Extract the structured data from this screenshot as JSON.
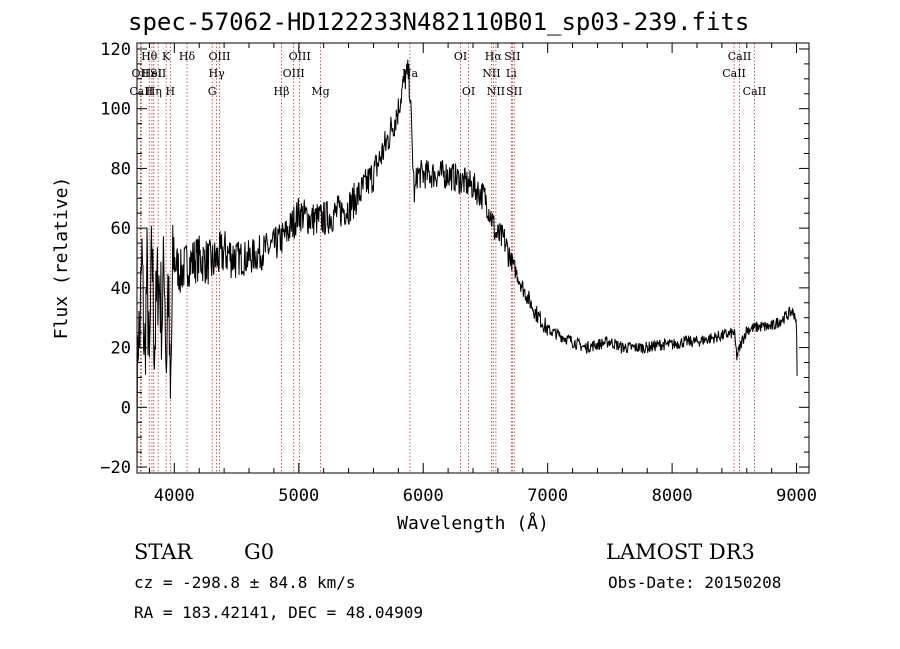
{
  "chart_data": {
    "type": "line",
    "title": "spec-57062-HD122233N482110B01_sp03-239.fits",
    "xlabel": "Wavelength (Å)",
    "ylabel": "Flux (relative)",
    "xlim": [
      3700,
      9100
    ],
    "ylim": [
      -22,
      122
    ],
    "x_ticks": [
      4000,
      5000,
      6000,
      7000,
      8000,
      9000
    ],
    "y_ticks": [
      -20,
      0,
      20,
      40,
      60,
      80,
      100,
      120
    ],
    "grid": false,
    "spectral_lines": [
      {
        "label": "Hθ",
        "wavelength": 3798,
        "row": 0
      },
      {
        "label": "OII",
        "wavelength": 3727,
        "row": 1
      },
      {
        "label": "CaII",
        "wavelength": 3734,
        "row": 2
      },
      {
        "label": "HeI",
        "wavelength": 3820,
        "row": 1
      },
      {
        "label": "Hη",
        "wavelength": 3835,
        "row": 2
      },
      {
        "label": "K",
        "wavelength": 3934,
        "row": 0
      },
      {
        "label": "SII",
        "wavelength": 3870,
        "row": 1
      },
      {
        "label": "H",
        "wavelength": 3968,
        "row": 2
      },
      {
        "label": "Hδ",
        "wavelength": 4102,
        "row": 0
      },
      {
        "label": "OIII",
        "wavelength": 4363,
        "row": 0
      },
      {
        "label": "Hγ",
        "wavelength": 4340,
        "row": 1
      },
      {
        "label": "G",
        "wavelength": 4304,
        "row": 2
      },
      {
        "label": "OIII",
        "wavelength": 5007,
        "row": 0
      },
      {
        "label": "OIII",
        "wavelength": 4959,
        "row": 1
      },
      {
        "label": "Hβ",
        "wavelength": 4861,
        "row": 2
      },
      {
        "label": "Mg",
        "wavelength": 5175,
        "row": 2
      },
      {
        "label": "Na",
        "wavelength": 5893,
        "row": 1
      },
      {
        "label": "OI",
        "wavelength": 6300,
        "row": 0
      },
      {
        "label": "OI",
        "wavelength": 6364,
        "row": 2
      },
      {
        "label": "Hα",
        "wavelength": 6563,
        "row": 0
      },
      {
        "label": "SII",
        "wavelength": 6716,
        "row": 0
      },
      {
        "label": "NII",
        "wavelength": 6548,
        "row": 1
      },
      {
        "label": "Li",
        "wavelength": 6708,
        "row": 1
      },
      {
        "label": "NII",
        "wavelength": 6584,
        "row": 2
      },
      {
        "label": "SII",
        "wavelength": 6731,
        "row": 2
      },
      {
        "label": "CaII",
        "wavelength": 8542,
        "row": 0
      },
      {
        "label": "CaII",
        "wavelength": 8498,
        "row": 1
      },
      {
        "label": "CaII",
        "wavelength": 8662,
        "row": 2
      }
    ],
    "series": [
      {
        "name": "flux",
        "anchors": [
          [
            3700,
            -5
          ],
          [
            3710,
            30
          ],
          [
            3720,
            20
          ],
          [
            3740,
            50
          ],
          [
            3760,
            15
          ],
          [
            3780,
            45
          ],
          [
            3800,
            10
          ],
          [
            3820,
            55
          ],
          [
            3840,
            20
          ],
          [
            3870,
            45
          ],
          [
            3900,
            30
          ],
          [
            3920,
            50
          ],
          [
            3935,
            12
          ],
          [
            3950,
            45
          ],
          [
            3968,
            -2
          ],
          [
            3990,
            50
          ],
          [
            4050,
            45
          ],
          [
            4100,
            48
          ],
          [
            4200,
            50
          ],
          [
            4300,
            48
          ],
          [
            4400,
            52
          ],
          [
            4500,
            50
          ],
          [
            4600,
            50
          ],
          [
            4700,
            52
          ],
          [
            4800,
            54
          ],
          [
            4900,
            58
          ],
          [
            5000,
            65
          ],
          [
            5100,
            63
          ],
          [
            5200,
            63
          ],
          [
            5300,
            65
          ],
          [
            5400,
            67
          ],
          [
            5500,
            72
          ],
          [
            5600,
            78
          ],
          [
            5700,
            88
          ],
          [
            5800,
            100
          ],
          [
            5850,
            110
          ],
          [
            5880,
            112
          ],
          [
            5895,
            105
          ],
          [
            5910,
            88
          ],
          [
            5930,
            70
          ],
          [
            5950,
            78
          ],
          [
            6000,
            78
          ],
          [
            6100,
            78
          ],
          [
            6200,
            78
          ],
          [
            6300,
            76
          ],
          [
            6400,
            74
          ],
          [
            6500,
            70
          ],
          [
            6560,
            62
          ],
          [
            6580,
            58
          ],
          [
            6650,
            56
          ],
          [
            6700,
            50
          ],
          [
            6800,
            40
          ],
          [
            6900,
            32
          ],
          [
            7000,
            26
          ],
          [
            7100,
            24
          ],
          [
            7200,
            22
          ],
          [
            7300,
            20
          ],
          [
            7400,
            21
          ],
          [
            7500,
            22
          ],
          [
            7600,
            20
          ],
          [
            7700,
            20
          ],
          [
            7800,
            20
          ],
          [
            7900,
            21
          ],
          [
            8000,
            21
          ],
          [
            8100,
            22
          ],
          [
            8200,
            22
          ],
          [
            8300,
            23
          ],
          [
            8400,
            24
          ],
          [
            8500,
            25
          ],
          [
            8520,
            17
          ],
          [
            8560,
            22
          ],
          [
            8600,
            26
          ],
          [
            8700,
            27
          ],
          [
            8800,
            27
          ],
          [
            8900,
            30
          ],
          [
            8960,
            32
          ],
          [
            8990,
            31
          ],
          [
            9000,
            25
          ],
          [
            9005,
            5
          ]
        ]
      }
    ]
  },
  "info": {
    "object_type": "STAR",
    "subclass": "G0",
    "survey": "LAMOST DR3",
    "cz": "cz = -298.8 ± 84.8 km/s",
    "obs_date": "Obs-Date: 20150208",
    "coords": "RA = 183.42141, DEC =  48.04909"
  }
}
